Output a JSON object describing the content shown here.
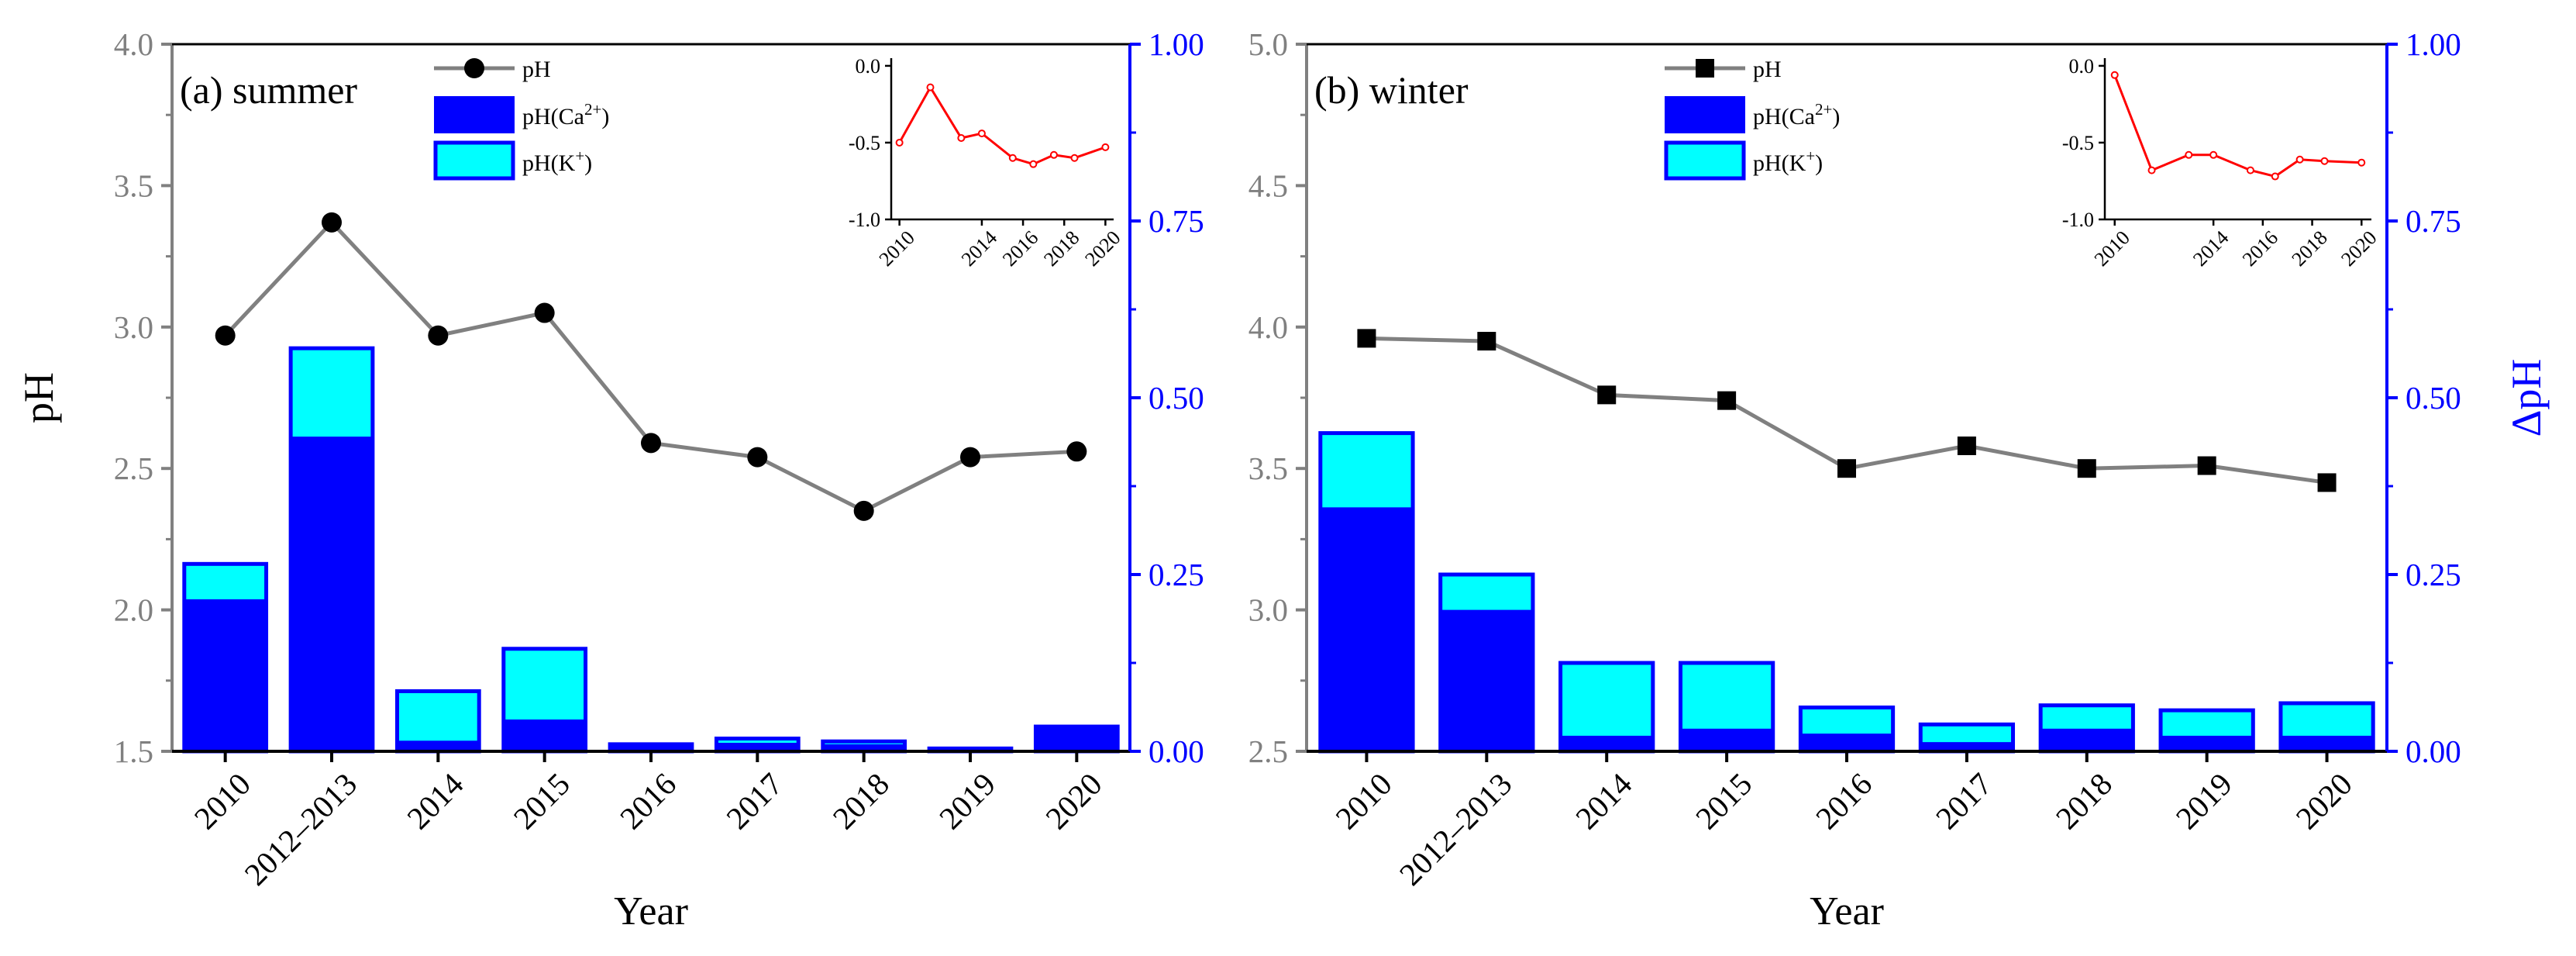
{
  "colors": {
    "line": "#808080",
    "ca": "#0000ff",
    "k": "#00ffff",
    "bar_border": "#0000ff",
    "right_axis": "#0000ff",
    "inset": "#ff0000",
    "left_axis": "#808080",
    "text": "#000000"
  },
  "chart_data": [
    {
      "type": "bar+line",
      "panel_label": "(a) summer",
      "xlabel": "Year",
      "ylabel": "pH",
      "y2label": "",
      "categories": [
        "2010",
        "2012–2013",
        "2014",
        "2015",
        "2016",
        "2017",
        "2018",
        "2019",
        "2020"
      ],
      "ylim": [
        1.5,
        4.0
      ],
      "yticks": [
        "1.5",
        "2.0",
        "2.5",
        "3.0",
        "3.5",
        "4.0"
      ],
      "y2lim": [
        0,
        1
      ],
      "y2ticks": [
        "0.00",
        "0.25",
        "0.50",
        "0.75",
        "1.00"
      ],
      "legend": [
        "pH",
        "pH(Ca²⁺)",
        "pH(K⁺)"
      ],
      "marker": "circle",
      "series": [
        {
          "name": "pH",
          "axis": "left",
          "values": [
            2.97,
            3.37,
            2.97,
            3.05,
            2.59,
            2.54,
            2.35,
            2.54,
            2.56
          ]
        },
        {
          "name": "pH(Ca²⁺)",
          "axis": "right",
          "values": [
            0.215,
            0.445,
            0.015,
            0.045,
            0.012,
            0.012,
            0.01,
            0.004,
            0.035
          ]
        },
        {
          "name": "pH(K⁺)",
          "axis": "right",
          "values": [
            0.265,
            0.57,
            0.085,
            0.145,
            0.01,
            0.018,
            0.014,
            0.004,
            0.035
          ]
        }
      ],
      "inset": {
        "type": "line",
        "x": [
          2010,
          2011.5,
          2013,
          2014,
          2015.5,
          2016.5,
          2017.5,
          2018.5,
          2020
        ],
        "y": [
          -0.5,
          -0.14,
          -0.47,
          -0.44,
          -0.6,
          -0.64,
          -0.58,
          -0.6,
          -0.53
        ],
        "xlim": [
          2009.6,
          2020.4
        ],
        "ylim": [
          -1.0,
          0.05
        ],
        "xticks": [
          "2010",
          "2014",
          "2016",
          "2018",
          "2020"
        ],
        "yticks": [
          "0.0",
          "-0.5",
          "-1.0"
        ]
      }
    },
    {
      "type": "bar+line",
      "panel_label": "(b) winter",
      "xlabel": "Year",
      "ylabel": "",
      "y2label": "ΔpH",
      "categories": [
        "2010",
        "2012–2013",
        "2014",
        "2015",
        "2016",
        "2017",
        "2018",
        "2019",
        "2020"
      ],
      "ylim": [
        2.5,
        5.0
      ],
      "yticks": [
        "2.5",
        "3.0",
        "3.5",
        "4.0",
        "4.5",
        "5.0"
      ],
      "y2lim": [
        0,
        1
      ],
      "y2ticks": [
        "0.00",
        "0.25",
        "0.50",
        "0.75",
        "1.00"
      ],
      "legend": [
        "pH",
        "pH(Ca²⁺)",
        "pH(K⁺)"
      ],
      "marker": "square",
      "series": [
        {
          "name": "pH",
          "axis": "left",
          "values": [
            3.96,
            3.95,
            3.76,
            3.74,
            3.5,
            3.58,
            3.5,
            3.51,
            3.45
          ]
        },
        {
          "name": "pH(Ca²⁺)",
          "axis": "right",
          "values": [
            0.345,
            0.2,
            0.022,
            0.032,
            0.025,
            0.013,
            0.032,
            0.022,
            0.022
          ]
        },
        {
          "name": "pH(K⁺)",
          "axis": "right",
          "values": [
            0.45,
            0.25,
            0.125,
            0.125,
            0.062,
            0.038,
            0.065,
            0.058,
            0.068
          ]
        }
      ],
      "inset": {
        "type": "line",
        "x": [
          2010,
          2011.5,
          2013,
          2014,
          2015.5,
          2016.5,
          2017.5,
          2018.5,
          2020
        ],
        "y": [
          -0.06,
          -0.68,
          -0.58,
          -0.58,
          -0.68,
          -0.72,
          -0.61,
          -0.62,
          -0.63
        ],
        "xlim": [
          2009.6,
          2020.4
        ],
        "ylim": [
          -1.0,
          0.05
        ],
        "xticks": [
          "2010",
          "2014",
          "2016",
          "2018",
          "2020"
        ],
        "yticks": [
          "0.0",
          "-0.5",
          "-1.0"
        ]
      }
    }
  ]
}
